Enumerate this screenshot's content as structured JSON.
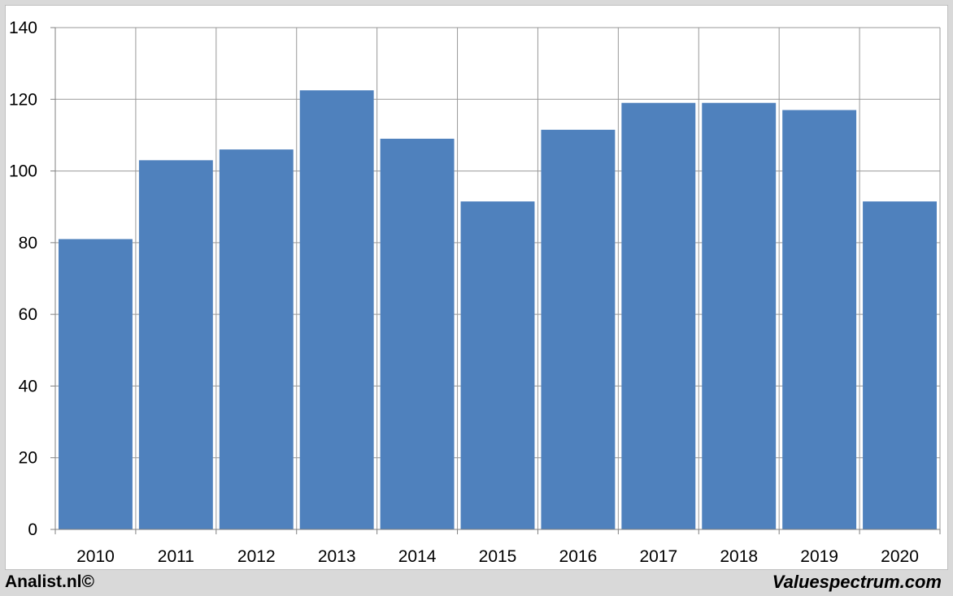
{
  "footer": {
    "left_text": "Analist.nl©",
    "right_text": "Valuespectrum.com"
  },
  "colors": {
    "bar": "#4f81bd",
    "grid": "#999999",
    "axis": "#808080",
    "background": "#ffffff",
    "frame": "#d9d9d9"
  },
  "chart_data": {
    "type": "bar",
    "title": "",
    "xlabel": "",
    "ylabel": "",
    "categories": [
      "2010",
      "2011",
      "2012",
      "2013",
      "2014",
      "2015",
      "2016",
      "2017",
      "2018",
      "2019",
      "2020"
    ],
    "values": [
      81,
      103,
      106,
      122.5,
      109,
      91.5,
      111.5,
      119,
      119,
      117,
      91.5
    ],
    "ylim": [
      0,
      140
    ],
    "yticks": [
      0,
      20,
      40,
      60,
      80,
      100,
      120,
      140
    ],
    "grid": true,
    "legend": "none"
  }
}
